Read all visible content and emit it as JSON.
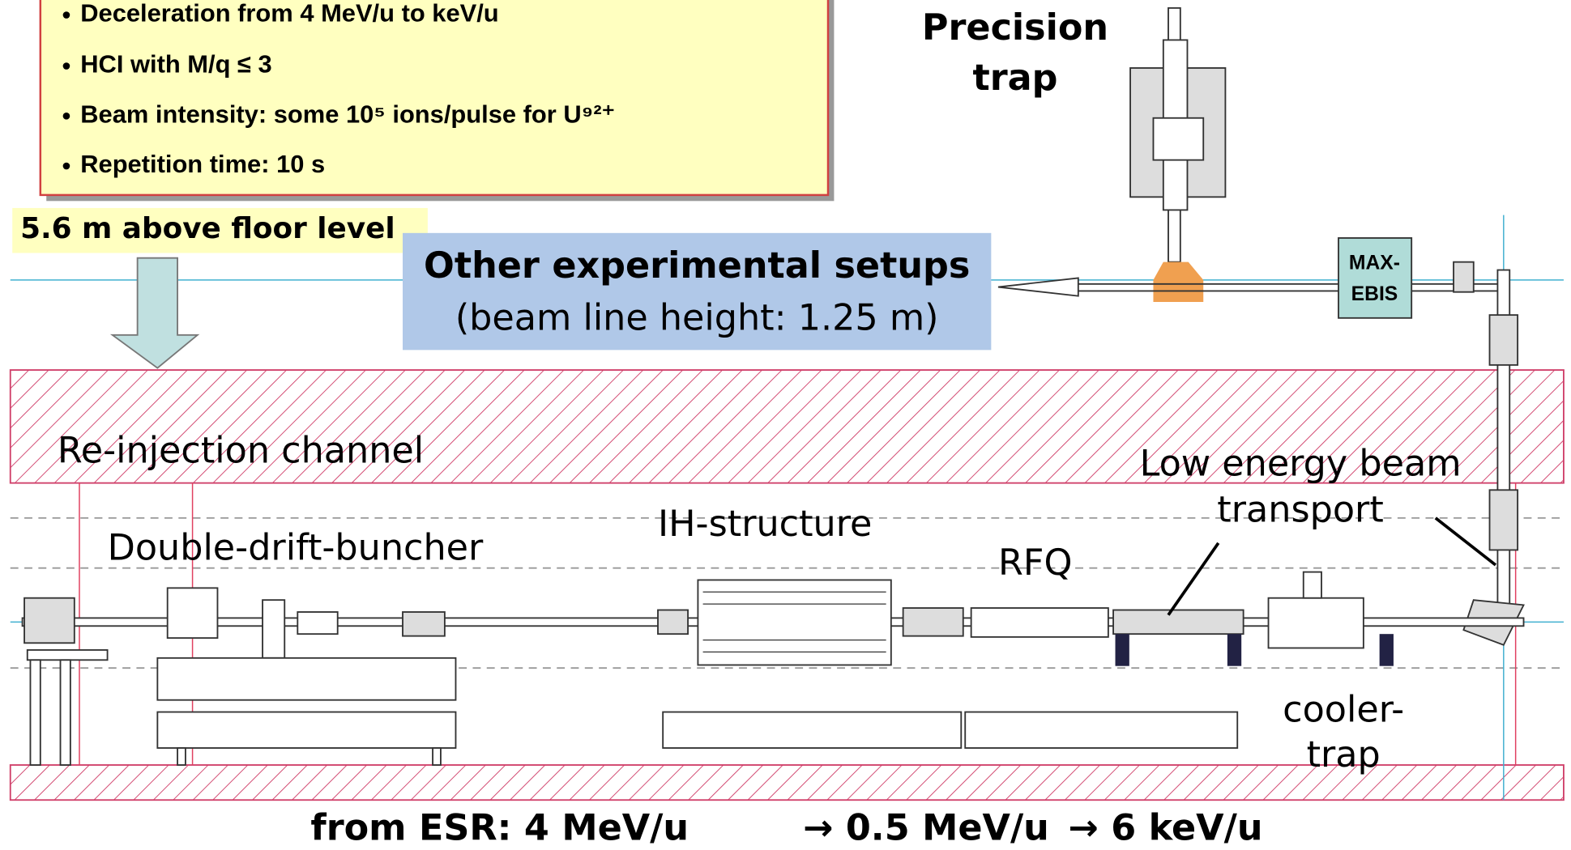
{
  "info_box": {
    "items": [
      "Deceleration from 4 MeV/u to keV/u",
      "HCI with M/q ≤ 3",
      "Beam intensity: some  10⁵ ions/pulse for U⁹²⁺",
      "Repetition time: 10 s"
    ]
  },
  "floor_label": "5.6 m above floor level",
  "precision_trap": [
    "Precision",
    "trap"
  ],
  "other_setups": {
    "title": "Other experimental setups",
    "subtitle": "(beam line height: 1.25 m)"
  },
  "maxebis": [
    "MAX-",
    "EBIS"
  ],
  "labels": {
    "reinjection": "Re-injection channel",
    "lebt": [
      "Low energy beam",
      "transport"
    ],
    "buncher": "Double-drift-buncher",
    "ih": "IH-structure",
    "rfq": "RFQ",
    "cooler": [
      "cooler-",
      "trap"
    ]
  },
  "energies": [
    "from ESR: 4 MeV/u",
    "→ 0.5 MeV/u",
    "→ 6 keV/u"
  ]
}
